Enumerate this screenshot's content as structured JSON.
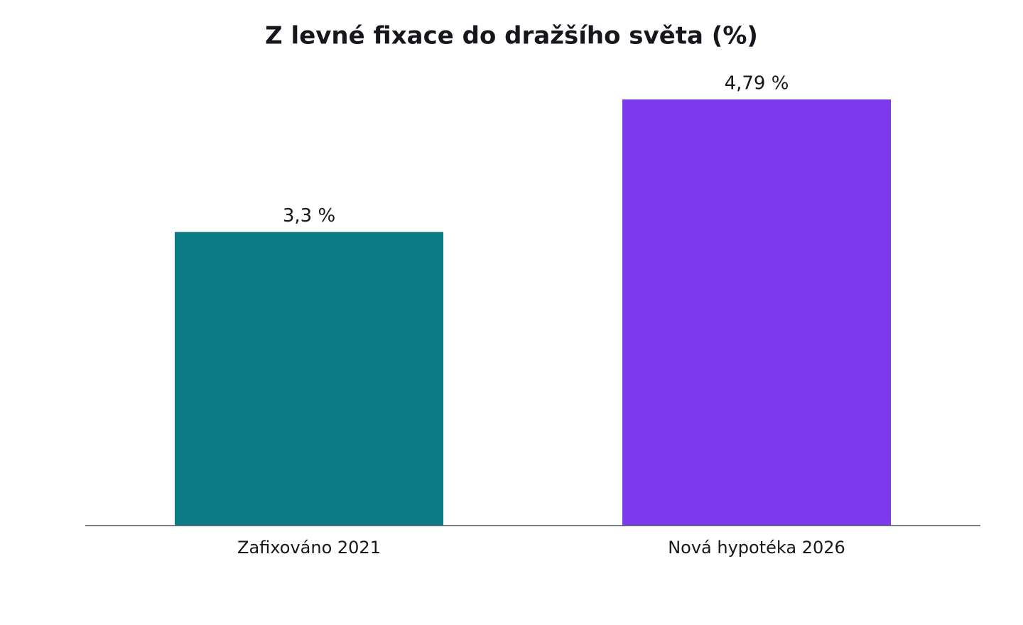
{
  "chart_data": {
    "type": "bar",
    "title": "Z levné fixace do dražšího světa (%)",
    "categories": [
      "Zafixováno 2021",
      "Nová hypotéka 2026"
    ],
    "values": [
      3.3,
      4.79
    ],
    "value_labels": [
      "3,3 %",
      "4,79 %"
    ],
    "colors": [
      "#0b7b85",
      "#7b3aec"
    ],
    "ylim": [
      0,
      5.03
    ]
  }
}
